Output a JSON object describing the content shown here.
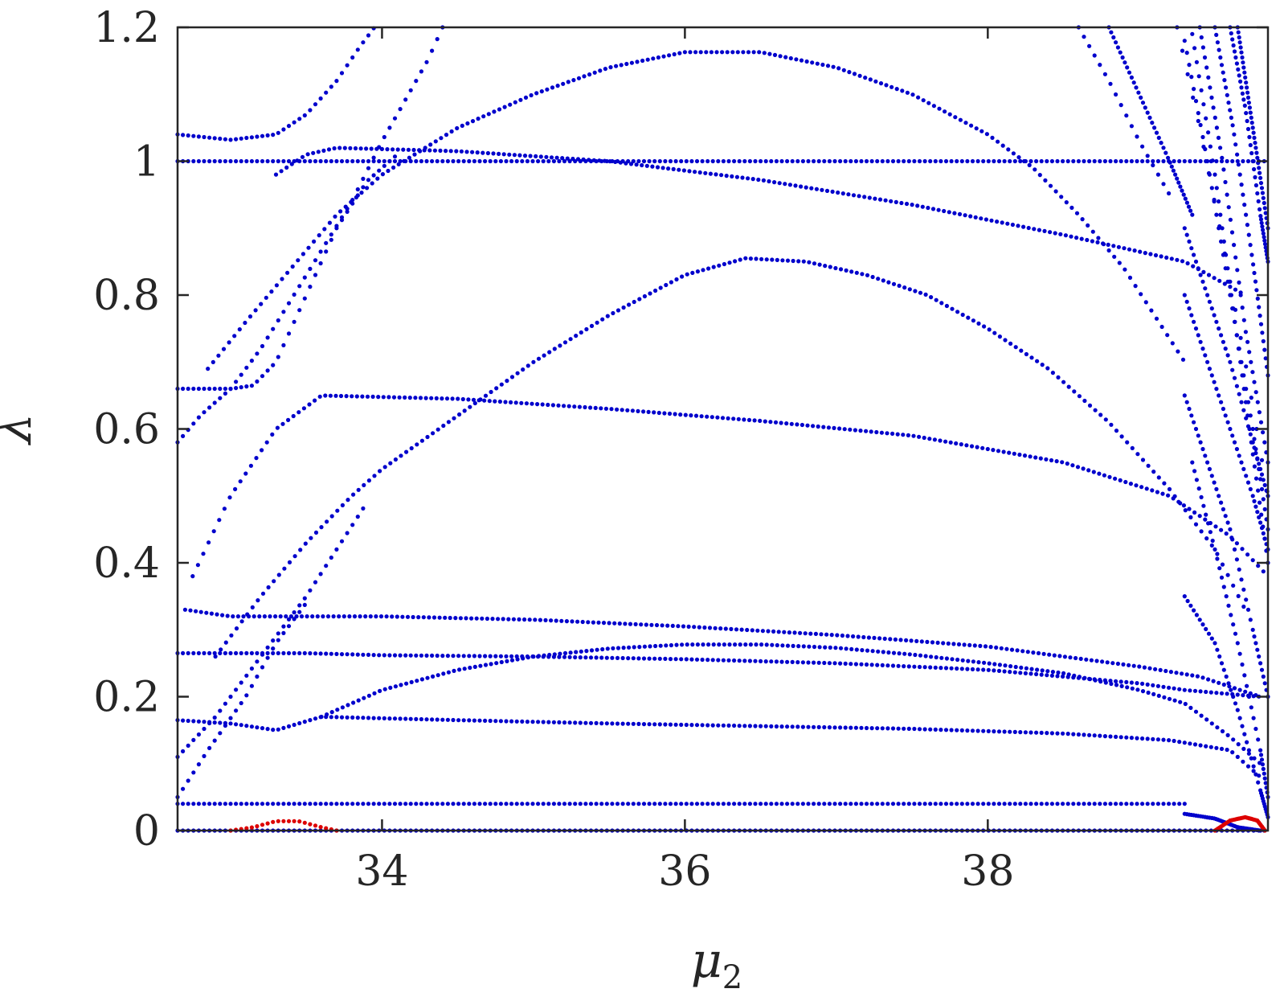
{
  "chart_data": {
    "type": "scatter",
    "title": "",
    "xlabel": "μ",
    "xlabel_sub": "2",
    "ylabel": "λ",
    "xlim": [
      32.65,
      39.85
    ],
    "ylim": [
      0,
      1.2
    ],
    "xticks": [
      34,
      36,
      38
    ],
    "xtick_labels": [
      "34",
      "36",
      "38"
    ],
    "yticks": [
      0,
      0.2,
      0.4,
      0.6,
      0.8,
      1.0,
      1.2
    ],
    "ytick_labels": [
      "0",
      "0.2",
      "0.4",
      "0.6",
      "0.8",
      "1",
      "1.2"
    ],
    "grid": false,
    "legend": "none",
    "series": [
      {
        "color": "#0000cc",
        "kind": "flat",
        "x0": 32.65,
        "x1": 39.85,
        "y": 0.0
      },
      {
        "color": "#0000cc",
        "kind": "flat",
        "x0": 32.65,
        "x1": 39.85,
        "y": 1.0
      },
      {
        "color": "#0000cc",
        "kind": "flat",
        "x0": 32.65,
        "x1": 39.3,
        "y": 0.04
      },
      {
        "color": "#0000cc",
        "kind": "points",
        "pts": [
          [
            32.65,
            1.04
          ],
          [
            33.0,
            1.032
          ],
          [
            33.3,
            1.04
          ],
          [
            33.5,
            1.07
          ],
          [
            33.7,
            1.12
          ],
          [
            33.85,
            1.17
          ],
          [
            33.95,
            1.2
          ]
        ]
      },
      {
        "color": "#0000cc",
        "kind": "points",
        "pts": [
          [
            33.3,
            0.98
          ],
          [
            33.5,
            1.01
          ],
          [
            33.7,
            1.02
          ],
          [
            34.5,
            1.015
          ],
          [
            35.5,
            1.0
          ],
          [
            36.5,
            0.972
          ],
          [
            37.5,
            0.935
          ],
          [
            38.5,
            0.89
          ],
          [
            39.3,
            0.85
          ],
          [
            39.7,
            0.8
          ]
        ]
      },
      {
        "color": "#0000cc",
        "kind": "points",
        "pts": [
          [
            32.65,
            0.66
          ],
          [
            33.0,
            0.66
          ],
          [
            33.15,
            0.665
          ],
          [
            33.3,
            0.7
          ],
          [
            33.5,
            0.8
          ],
          [
            33.7,
            0.9
          ],
          [
            33.9,
            0.97
          ],
          [
            34.1,
            1.01
          ]
        ]
      },
      {
        "color": "#0000cc",
        "kind": "points",
        "pts": [
          [
            32.85,
            0.69
          ],
          [
            33.1,
            0.76
          ],
          [
            33.4,
            0.84
          ],
          [
            33.7,
            0.92
          ],
          [
            34.0,
            0.98
          ],
          [
            34.5,
            1.05
          ],
          [
            35.0,
            1.1
          ],
          [
            35.5,
            1.14
          ],
          [
            36.0,
            1.163
          ],
          [
            36.5,
            1.163
          ],
          [
            37.0,
            1.14
          ],
          [
            37.5,
            1.1
          ],
          [
            38.0,
            1.04
          ],
          [
            38.3,
            0.99
          ],
          [
            38.6,
            0.92
          ],
          [
            38.9,
            0.84
          ],
          [
            39.1,
            0.77
          ],
          [
            39.3,
            0.7
          ]
        ]
      },
      {
        "color": "#0000cc",
        "kind": "points",
        "pts": [
          [
            32.65,
            0.58
          ],
          [
            32.8,
            0.62
          ],
          [
            33.0,
            0.66
          ],
          [
            33.2,
            0.72
          ],
          [
            33.5,
            0.83
          ],
          [
            33.8,
            0.94
          ],
          [
            34.0,
            1.03
          ],
          [
            34.3,
            1.15
          ],
          [
            34.4,
            1.2
          ]
        ]
      },
      {
        "color": "#0000cc",
        "kind": "points",
        "pts": [
          [
            32.75,
            0.38
          ],
          [
            33.0,
            0.5
          ],
          [
            33.3,
            0.6
          ],
          [
            33.6,
            0.65
          ],
          [
            34.5,
            0.645
          ],
          [
            35.5,
            0.63
          ],
          [
            36.5,
            0.612
          ],
          [
            37.5,
            0.59
          ],
          [
            38.5,
            0.55
          ],
          [
            39.2,
            0.5
          ],
          [
            39.6,
            0.44
          ],
          [
            39.85,
            0.38
          ]
        ]
      },
      {
        "color": "#0000cc",
        "kind": "points",
        "pts": [
          [
            32.9,
            0.26
          ],
          [
            33.2,
            0.35
          ],
          [
            33.5,
            0.43
          ],
          [
            33.8,
            0.5
          ],
          [
            34.0,
            0.54
          ],
          [
            34.5,
            0.62
          ],
          [
            35.0,
            0.7
          ],
          [
            35.5,
            0.77
          ],
          [
            36.0,
            0.83
          ],
          [
            36.4,
            0.855
          ],
          [
            36.8,
            0.85
          ],
          [
            37.2,
            0.83
          ],
          [
            37.6,
            0.8
          ],
          [
            38.0,
            0.75
          ],
          [
            38.4,
            0.69
          ],
          [
            38.8,
            0.61
          ],
          [
            39.2,
            0.51
          ],
          [
            39.5,
            0.42
          ],
          [
            39.7,
            0.33
          ]
        ]
      },
      {
        "color": "#0000cc",
        "kind": "points",
        "pts": [
          [
            32.7,
            0.33
          ],
          [
            33.0,
            0.32
          ],
          [
            34.0,
            0.32
          ],
          [
            35.0,
            0.315
          ],
          [
            36.0,
            0.305
          ],
          [
            37.0,
            0.292
          ],
          [
            38.0,
            0.275
          ],
          [
            39.0,
            0.245
          ],
          [
            39.4,
            0.23
          ],
          [
            39.8,
            0.2
          ]
        ]
      },
      {
        "color": "#0000cc",
        "kind": "points",
        "pts": [
          [
            32.65,
            0.265
          ],
          [
            33.5,
            0.265
          ],
          [
            34.0,
            0.262
          ],
          [
            35.0,
            0.26
          ],
          [
            36.0,
            0.256
          ],
          [
            37.0,
            0.25
          ],
          [
            38.0,
            0.24
          ],
          [
            39.0,
            0.22
          ],
          [
            39.3,
            0.21
          ],
          [
            39.8,
            0.2
          ]
        ]
      },
      {
        "color": "#0000cc",
        "kind": "points",
        "pts": [
          [
            33.6,
            0.17
          ],
          [
            34.0,
            0.21
          ],
          [
            34.5,
            0.24
          ],
          [
            35.0,
            0.26
          ],
          [
            35.5,
            0.272
          ],
          [
            36.0,
            0.278
          ],
          [
            36.5,
            0.278
          ],
          [
            37.0,
            0.273
          ],
          [
            37.5,
            0.263
          ],
          [
            38.0,
            0.25
          ],
          [
            38.5,
            0.235
          ],
          [
            39.0,
            0.21
          ],
          [
            39.3,
            0.19
          ],
          [
            39.6,
            0.14
          ],
          [
            39.8,
            0.1
          ]
        ]
      },
      {
        "color": "#0000cc",
        "kind": "points",
        "pts": [
          [
            32.65,
            0.165
          ],
          [
            33.0,
            0.16
          ],
          [
            33.3,
            0.15
          ],
          [
            33.6,
            0.17
          ],
          [
            34.5,
            0.165
          ],
          [
            35.5,
            0.16
          ],
          [
            36.5,
            0.156
          ],
          [
            37.5,
            0.152
          ],
          [
            38.5,
            0.145
          ],
          [
            39.2,
            0.135
          ],
          [
            39.6,
            0.12
          ],
          [
            39.8,
            0.08
          ]
        ]
      },
      {
        "color": "#0000cc",
        "kind": "points",
        "pts": [
          [
            32.65,
            0.11
          ],
          [
            32.9,
            0.17
          ],
          [
            33.2,
            0.26
          ],
          [
            33.5,
            0.35
          ],
          [
            33.7,
            0.42
          ],
          [
            33.9,
            0.49
          ]
        ]
      },
      {
        "color": "#0000cc",
        "kind": "points",
        "pts": [
          [
            32.65,
            0.05
          ],
          [
            32.85,
            0.12
          ],
          [
            33.1,
            0.2
          ],
          [
            33.3,
            0.28
          ],
          [
            33.5,
            0.34
          ]
        ]
      },
      {
        "color": "#0000cc",
        "kind": "points",
        "pts": [
          [
            39.3,
            0.025
          ],
          [
            39.5,
            0.018
          ],
          [
            39.65,
            0.005
          ],
          [
            39.8,
            0.0
          ]
        ]
      },
      {
        "color": "#0000cc",
        "kind": "points",
        "pts": [
          [
            38.6,
            1.2
          ],
          [
            38.8,
            1.12
          ],
          [
            39.0,
            1.03
          ],
          [
            39.2,
            0.95
          ]
        ]
      },
      {
        "color": "#0000cc",
        "kind": "points",
        "pts": [
          [
            38.8,
            1.2
          ],
          [
            39.0,
            1.1
          ],
          [
            39.2,
            1.0
          ],
          [
            39.35,
            0.92
          ]
        ]
      },
      {
        "color": "#0000cc",
        "kind": "points",
        "pts": [
          [
            39.25,
            1.2
          ],
          [
            39.4,
            1.05
          ],
          [
            39.55,
            0.88
          ],
          [
            39.7,
            0.7
          ],
          [
            39.85,
            0.5
          ]
        ]
      },
      {
        "color": "#0000cc",
        "kind": "points",
        "pts": [
          [
            39.3,
            1.18
          ],
          [
            39.45,
            1.0
          ],
          [
            39.6,
            0.8
          ],
          [
            39.75,
            0.6
          ],
          [
            39.85,
            0.45
          ]
        ]
      },
      {
        "color": "#0000cc",
        "kind": "points",
        "pts": [
          [
            39.35,
            1.19
          ],
          [
            39.5,
            0.98
          ],
          [
            39.62,
            0.78
          ],
          [
            39.74,
            0.58
          ],
          [
            39.85,
            0.4
          ]
        ]
      },
      {
        "color": "#0000cc",
        "kind": "points",
        "pts": [
          [
            39.4,
            1.2
          ],
          [
            39.55,
            1.0
          ],
          [
            39.7,
            0.75
          ],
          [
            39.85,
            0.55
          ]
        ]
      },
      {
        "color": "#0000cc",
        "kind": "points",
        "pts": [
          [
            39.5,
            1.2
          ],
          [
            39.62,
            1.05
          ],
          [
            39.75,
            0.85
          ],
          [
            39.85,
            0.68
          ]
        ]
      },
      {
        "color": "#0000cc",
        "kind": "points",
        "pts": [
          [
            39.6,
            1.2
          ],
          [
            39.7,
            1.08
          ],
          [
            39.8,
            0.92
          ],
          [
            39.85,
            0.85
          ]
        ]
      },
      {
        "color": "#0000cc",
        "kind": "points",
        "pts": [
          [
            39.65,
            1.2
          ],
          [
            39.75,
            1.05
          ],
          [
            39.85,
            0.9
          ]
        ]
      },
      {
        "color": "#0000cc",
        "kind": "points",
        "pts": [
          [
            39.3,
            0.65
          ],
          [
            39.45,
            0.55
          ],
          [
            39.6,
            0.45
          ],
          [
            39.75,
            0.3
          ],
          [
            39.85,
            0.2
          ]
        ]
      },
      {
        "color": "#0000cc",
        "kind": "points",
        "pts": [
          [
            39.35,
            0.55
          ],
          [
            39.5,
            0.42
          ],
          [
            39.65,
            0.28
          ],
          [
            39.8,
            0.12
          ],
          [
            39.85,
            0.05
          ]
        ]
      },
      {
        "color": "#0000cc",
        "kind": "points",
        "pts": [
          [
            39.3,
            0.35
          ],
          [
            39.5,
            0.28
          ],
          [
            39.65,
            0.18
          ],
          [
            39.8,
            0.06
          ],
          [
            39.85,
            0.02
          ]
        ]
      },
      {
        "color": "#0000cc",
        "kind": "points",
        "pts": [
          [
            39.3,
            0.8
          ],
          [
            39.45,
            0.7
          ],
          [
            39.6,
            0.6
          ],
          [
            39.75,
            0.5
          ],
          [
            39.85,
            0.42
          ]
        ]
      },
      {
        "color": "#0000cc",
        "kind": "points",
        "pts": [
          [
            39.3,
            0.9
          ],
          [
            39.45,
            0.8
          ],
          [
            39.6,
            0.7
          ],
          [
            39.75,
            0.58
          ],
          [
            39.85,
            0.5
          ]
        ]
      },
      {
        "color": "#dd0000",
        "kind": "points",
        "pts": [
          [
            33.0,
            0.0
          ],
          [
            33.15,
            0.005
          ],
          [
            33.3,
            0.014
          ],
          [
            33.45,
            0.014
          ],
          [
            33.6,
            0.005
          ],
          [
            33.7,
            0.0
          ]
        ]
      },
      {
        "color": "#dd0000",
        "kind": "points",
        "pts": [
          [
            39.5,
            0.0
          ],
          [
            39.6,
            0.015
          ],
          [
            39.7,
            0.02
          ],
          [
            39.78,
            0.015
          ],
          [
            39.83,
            0.0
          ]
        ]
      }
    ]
  }
}
